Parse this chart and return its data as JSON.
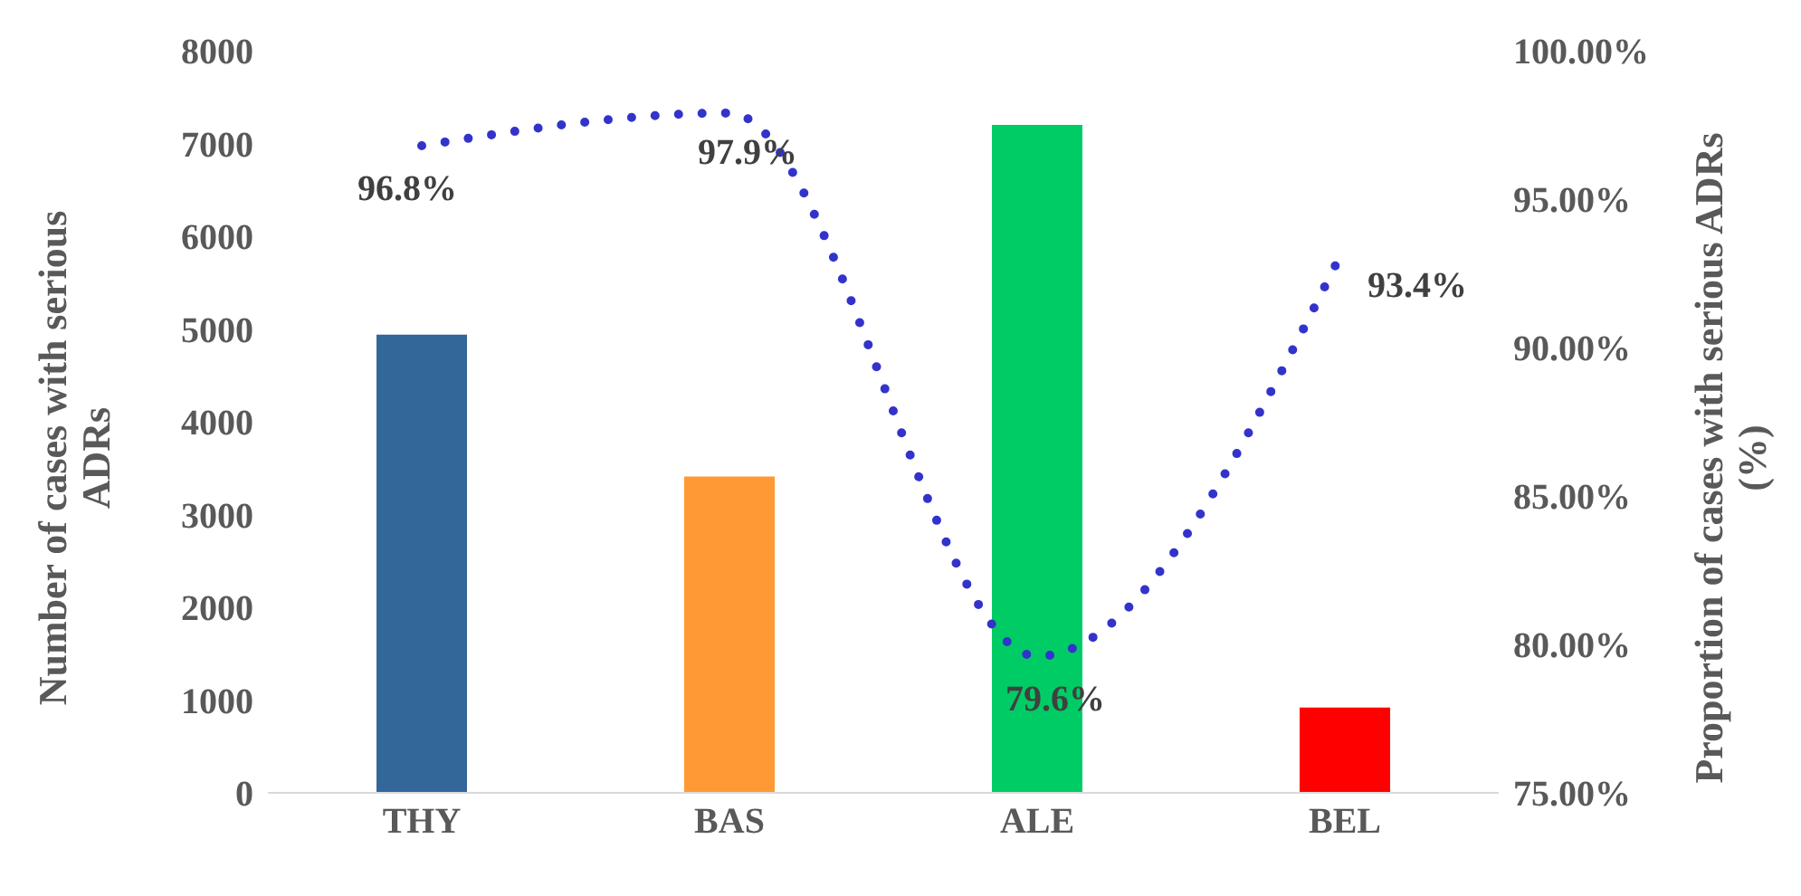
{
  "chart_data": {
    "type": "bar",
    "categories": [
      "THY",
      "BAS",
      "ALE",
      "BEL"
    ],
    "ylabel": "Number of cases with serious ADRs",
    "y2label": "Proportion of cases with serious ADRs (%)",
    "ylim": [
      0,
      8000
    ],
    "yticks": [
      0,
      1000,
      2000,
      3000,
      4000,
      5000,
      6000,
      7000,
      8000
    ],
    "y2lim": [
      75,
      100
    ],
    "y2ticks": [
      {
        "value": 75,
        "label": "75.00%"
      },
      {
        "value": 80,
        "label": "80.00%"
      },
      {
        "value": 85,
        "label": "85.00%"
      },
      {
        "value": 90,
        "label": "90.00%"
      },
      {
        "value": 95,
        "label": "95.00%"
      },
      {
        "value": 100,
        "label": "100.00%"
      }
    ],
    "grid": false,
    "legend": false,
    "series": [
      {
        "colors": [
          "#336699",
          "#ff9933",
          "#00cc66",
          "#ff0000"
        ],
        "values": [
          4940,
          3410,
          7200,
          920
        ]
      },
      {
        "type": "line",
        "axis": "y2",
        "color": "#3333cc",
        "line_style": "dotted",
        "marker": "none",
        "values": [
          96.8,
          97.9,
          79.6,
          93.4
        ],
        "value_labels": [
          "96.8%",
          "97.9%",
          "79.6%",
          "93.4%"
        ]
      }
    ]
  }
}
